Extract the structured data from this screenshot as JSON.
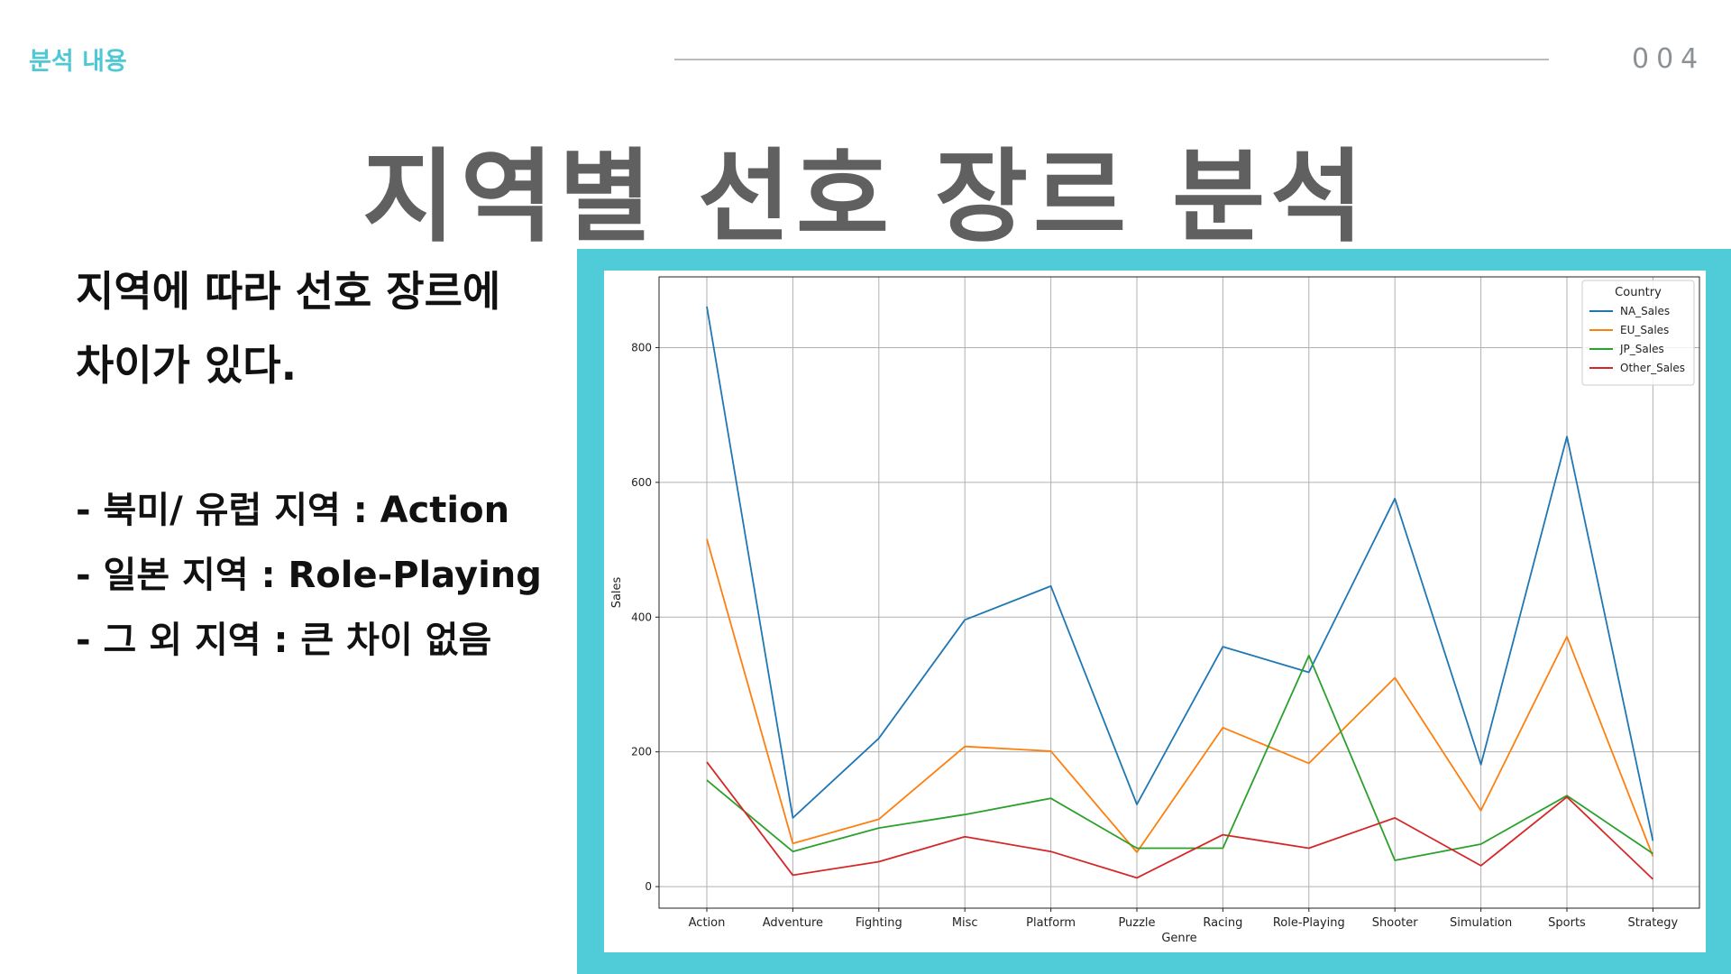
{
  "header": {
    "section_label": "분석 내용",
    "page_number": "004"
  },
  "title": "지역별 선호 장르 분석",
  "summary": {
    "line1": "지역에 따라 선호 장르에",
    "line2": "차이가 있다."
  },
  "bullets": [
    "- 북미/ 유럽 지역 : Action",
    "- 일본 지역 : Role-Playing",
    "- 그 외 지역 : 큰 차이 없음"
  ],
  "colors": {
    "accent": "#4fccd8",
    "title": "#606060"
  },
  "chart_data": {
    "type": "line",
    "title": "",
    "xlabel": "Genre",
    "ylabel": "Sales",
    "categories": [
      "Action",
      "Adventure",
      "Fighting",
      "Misc",
      "Platform",
      "Puzzle",
      "Racing",
      "Role-Playing",
      "Shooter",
      "Simulation",
      "Sports",
      "Strategy"
    ],
    "ylim": [
      -32,
      905
    ],
    "yticks": [
      0,
      200,
      400,
      600,
      800
    ],
    "grid": true,
    "legend": {
      "title": "Country",
      "placement": "top-right"
    },
    "series": [
      {
        "name": "NA_Sales",
        "color": "#1f77b4",
        "values": [
          861,
          102,
          220,
          396,
          446,
          122,
          356,
          318,
          576,
          181,
          668,
          68
        ]
      },
      {
        "name": "EU_Sales",
        "color": "#ff7f0e",
        "values": [
          516,
          64,
          100,
          208,
          201,
          51,
          236,
          183,
          310,
          113,
          371,
          45
        ]
      },
      {
        "name": "JP_Sales",
        "color": "#2ca02c",
        "values": [
          158,
          52,
          87,
          107,
          131,
          57,
          57,
          343,
          39,
          63,
          135,
          49
        ]
      },
      {
        "name": "Other_Sales",
        "color": "#d62728",
        "values": [
          185,
          17,
          37,
          74,
          52,
          13,
          77,
          57,
          102,
          31,
          133,
          11
        ]
      }
    ]
  }
}
